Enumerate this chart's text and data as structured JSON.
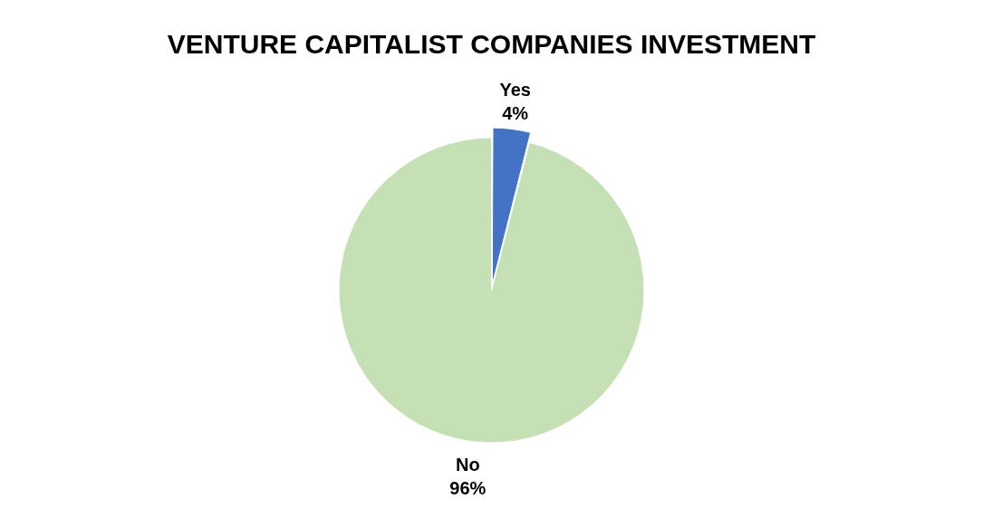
{
  "chart_data": {
    "type": "pie",
    "title": "VENTURE CAPITALIST COMPANIES INVESTMENT",
    "categories": [
      "Yes",
      "No"
    ],
    "values": [
      4,
      96
    ],
    "colors": [
      "#4472c4",
      "#c5e0b4"
    ],
    "value_labels": [
      "4%",
      "96%"
    ]
  }
}
